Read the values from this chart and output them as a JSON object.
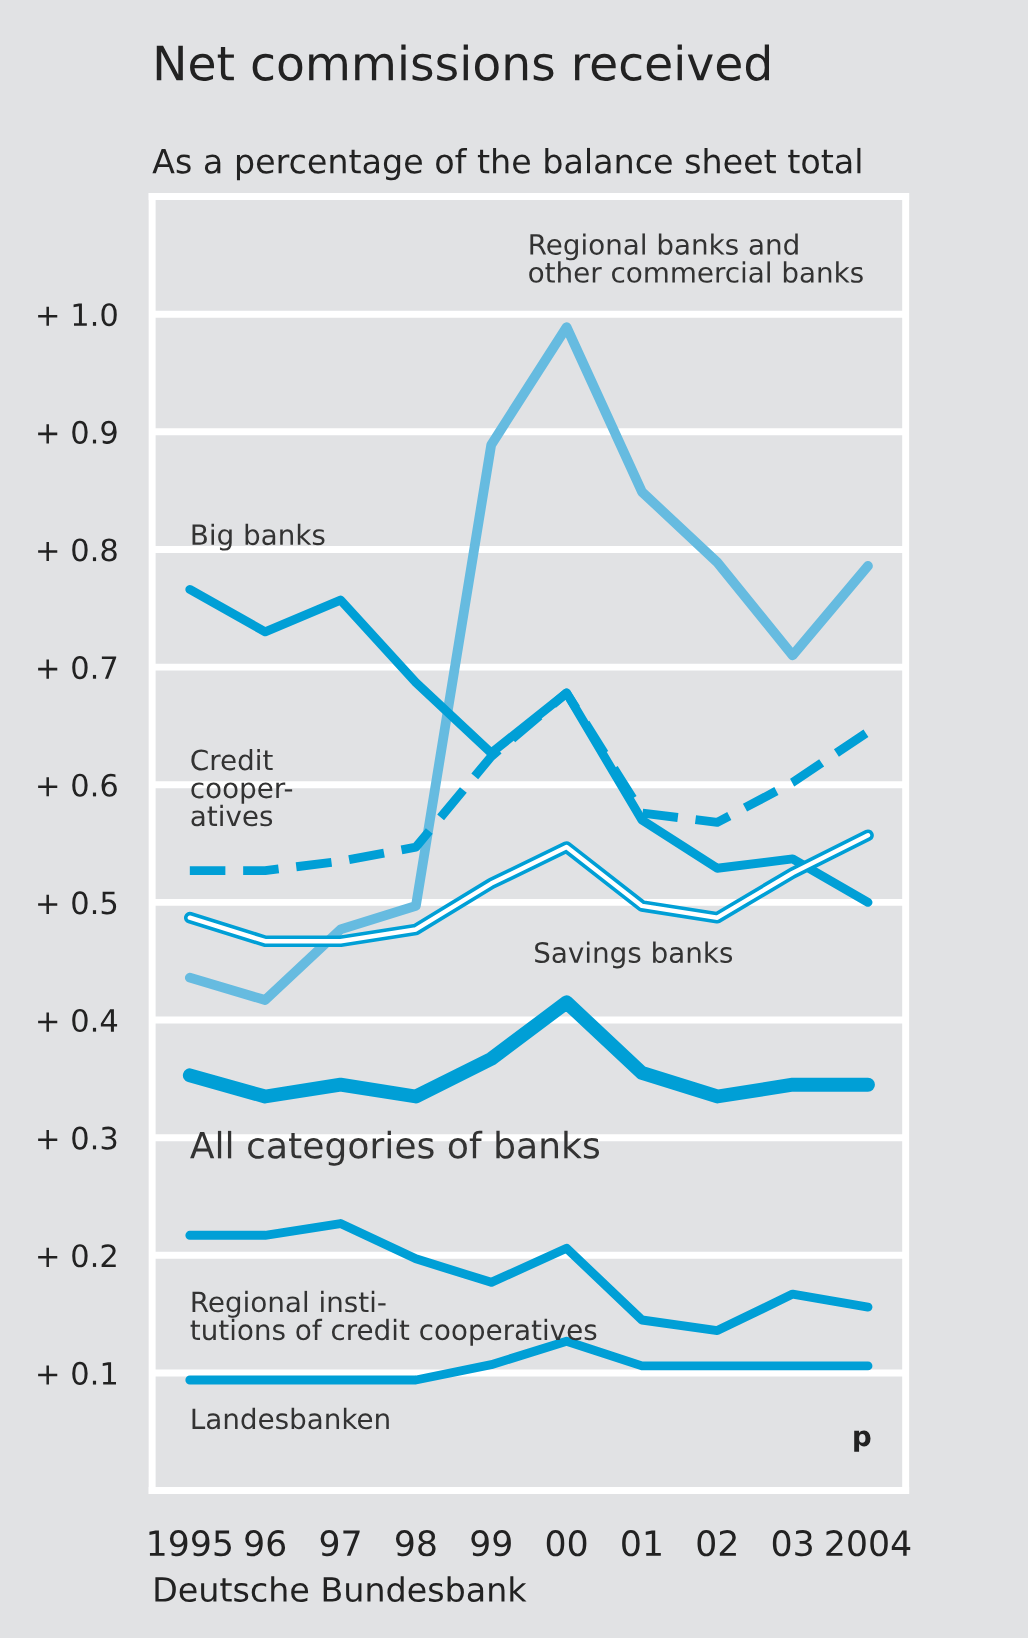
{
  "chart_data": {
    "type": "line",
    "title": "Net commissions received",
    "subtitle": "As a percentage of the balance sheet total",
    "categories": [
      "1995",
      "96",
      "97",
      "98",
      "99",
      "00",
      "01",
      "02",
      "03",
      "2004"
    ],
    "series": [
      {
        "name": "Regional banks and\nother commercial banks",
        "color": "#66bbe0",
        "values": [
          0.436,
          0.417,
          0.477,
          0.497,
          0.889,
          0.989,
          0.849,
          0.789,
          0.71,
          0.786
        ]
      },
      {
        "name": "Big banks",
        "color": "#009fd6",
        "values": [
          0.766,
          0.73,
          0.757,
          0.687,
          0.627,
          0.678,
          0.57,
          0.529,
          0.537,
          0.5
        ]
      },
      {
        "name": "Credit\ncooper-\natives",
        "color": "#009fd6",
        "line_style": "dashed",
        "values": [
          0.527,
          0.527,
          0.535,
          0.547,
          0.624,
          0.678,
          0.576,
          0.568,
          0.602,
          0.645
        ]
      },
      {
        "name": "Savings banks",
        "color": "#009fd6",
        "values": [
          0.487,
          0.467,
          0.467,
          0.477,
          0.516,
          0.547,
          0.497,
          0.487,
          0.525,
          0.557
        ]
      },
      {
        "name": "All categories of banks",
        "color": "#009fd6",
        "values": [
          0.353,
          0.335,
          0.345,
          0.335,
          0.367,
          0.415,
          0.355,
          0.335,
          0.345,
          0.345
        ]
      },
      {
        "name": "Regional insti-\ntutions of credit cooperatives",
        "color": "#009fd6",
        "values": [
          0.217,
          0.217,
          0.227,
          0.197,
          0.177,
          0.206,
          0.145,
          0.136,
          0.167,
          0.156
        ]
      },
      {
        "name": "Landesbanken",
        "color": "#009fd6",
        "values": [
          0.094,
          0.094,
          0.094,
          0.094,
          0.107,
          0.127,
          0.106,
          0.106,
          0.106,
          0.106
        ]
      }
    ],
    "ylim": [
      0,
      1.1
    ],
    "yticks": [
      {
        "value": 0.1,
        "label": "+ 0.1"
      },
      {
        "value": 0.2,
        "label": "+ 0.2"
      },
      {
        "value": 0.3,
        "label": "+ 0.3"
      },
      {
        "value": 0.4,
        "label": "+ 0.4"
      },
      {
        "value": 0.5,
        "label": "+ 0.5"
      },
      {
        "value": 0.6,
        "label": "+ 0.6"
      },
      {
        "value": 0.7,
        "label": "+ 0.7"
      },
      {
        "value": 0.8,
        "label": "+ 0.8"
      },
      {
        "value": 0.9,
        "label": "+ 0.9"
      },
      {
        "value": 1.0,
        "label": "+ 1.0"
      }
    ],
    "grid": "y",
    "legend": false,
    "line_style": "solid",
    "marker": "none",
    "annotations": [
      "p",
      "Deutsche Bundesbank"
    ]
  }
}
